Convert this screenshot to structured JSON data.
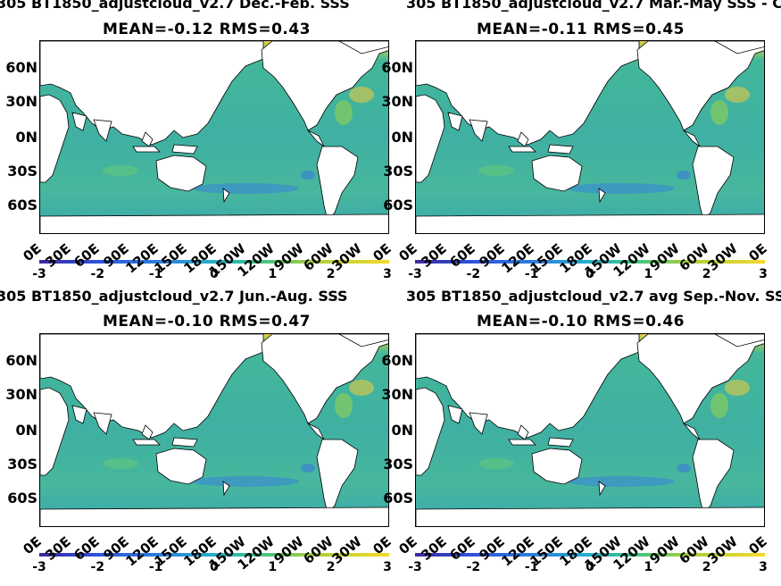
{
  "panels": [
    {
      "title": "305 BT1850_adjustcloud_v2.7 Dec.-Feb. SSS",
      "stats": "MEAN=-0.12   RMS=0.43"
    },
    {
      "title": "305 BT1850_adjustcloud_v2.7 Mar.-May SSS - C",
      "stats": "MEAN=-0.11   RMS=0.45"
    },
    {
      "title": "305 BT1850_adjustcloud_v2.7 Jun.-Aug. SSS",
      "stats": "MEAN=-0.10   RMS=0.47"
    },
    {
      "title": "305 BT1850_adjustcloud_v2.7 avg Sep.-Nov. SSS",
      "stats": "MEAN=-0.10   RMS=0.46"
    }
  ],
  "lat_labels": [
    "60N",
    "30N",
    "0N",
    "30S",
    "60S"
  ],
  "lon_labels": [
    "0E",
    "30E",
    "60E",
    "90E",
    "120E",
    "150E",
    "180E",
    "150W",
    "120W",
    "90W",
    "60W",
    "30W",
    "0E"
  ],
  "colorbar": {
    "ticks": [
      "-3",
      "-2",
      "-1",
      "0",
      "1",
      "2",
      "3"
    ],
    "range": [
      -3,
      3
    ]
  },
  "colors": {
    "ocean": "#3fb0a2",
    "arctic": "#e2c84a",
    "land": "#ffffff",
    "low": "#3d2a9a",
    "high": "#f5d92a"
  }
}
